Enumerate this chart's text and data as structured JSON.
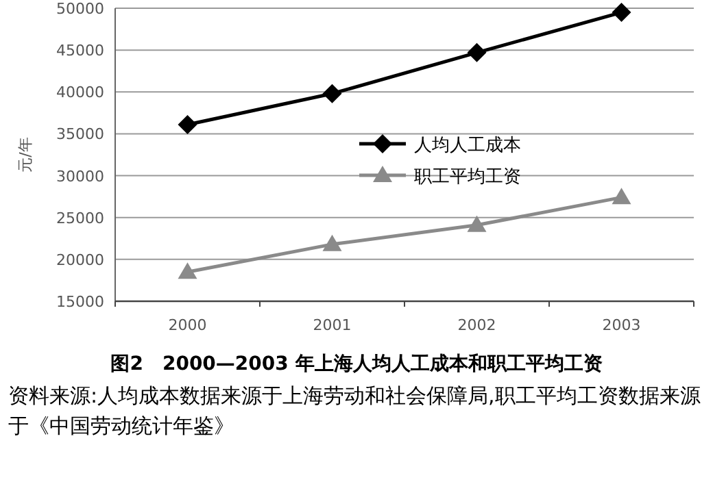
{
  "chart_data": {
    "type": "line",
    "title": "图2　2000—2003 年上海人均人工成本和职工平均工资",
    "ylabel": "元/年",
    "categories": [
      "2000",
      "2001",
      "2002",
      "2003"
    ],
    "series": [
      {
        "name": "人均人工成本",
        "color": "#000000",
        "marker": "diamond",
        "values": [
          36100,
          39800,
          44700,
          49500
        ]
      },
      {
        "name": "职工平均工资",
        "color": "#8a8a8a",
        "marker": "triangle",
        "values": [
          18500,
          21800,
          24100,
          27400
        ]
      }
    ],
    "ylim": [
      15000,
      50000
    ],
    "yticks": [
      15000,
      20000,
      25000,
      30000,
      35000,
      40000,
      45000,
      50000
    ],
    "grid": "y",
    "legend": "center",
    "annotations": [
      "资料来源:人均成本数据来源于上海劳动和社会保障局,职工平均工资数据来源于《中国劳动统计年鉴》"
    ]
  }
}
